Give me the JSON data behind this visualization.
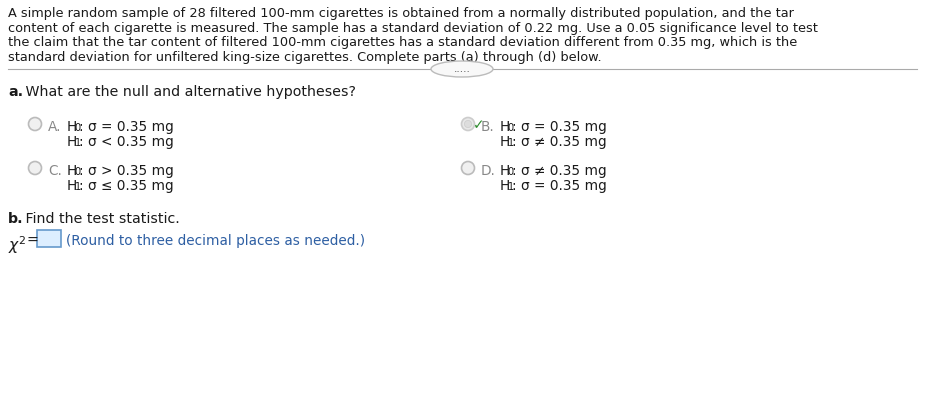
{
  "background_color": "#ffffff",
  "text_color": "#1a1a1a",
  "gray_color": "#888888",
  "blue_color": "#2e5fa3",
  "green_color": "#2e8b2e",
  "light_green_fill": "#e8f5e8",
  "light_gray_fill": "#f5f5f5",
  "intro_line1": "A simple random sample of 28 filtered 100-mm cigarettes is obtained from a normally distributed population, and the tar",
  "intro_line2": "content of each cigarette is measured. The sample has a standard deviation of 0.22 mg. Use a 0.05 significance level to test",
  "intro_line3": "the claim that the tar content of filtered 100-mm cigarettes has a standard deviation different from 0.35 mg, which is the",
  "intro_line4": "standard deviation for unfiltered king-size cigarettes. Complete parts (a) through (d) below.",
  "dots_text": ".....",
  "part_a_bold": "a.",
  "part_a_rest": " What are the null and alternative hypotheses?",
  "option_A_label": "A.",
  "option_A_line1_pre": "H",
  "option_A_line1_sub": "0",
  "option_A_line1_post": ": σ = 0.35 mg",
  "option_A_line2_pre": "H",
  "option_A_line2_sub": "1",
  "option_A_line2_post": ": σ < 0.35 mg",
  "option_B_label": "B.",
  "option_B_line1_post": ": σ = 0.35 mg",
  "option_B_line2_post": ": σ ≠ 0.35 mg",
  "option_C_label": "C.",
  "option_C_line1_post": ": σ > 0.35 mg",
  "option_C_line2_post": ": σ ≤ 0.35 mg",
  "option_D_label": "D.",
  "option_D_line1_post": ": σ ≠ 0.35 mg",
  "option_D_line2_post": ": σ = 0.35 mg",
  "part_b_bold": "b.",
  "part_b_rest": " Find the test statistic.",
  "input_hint": "(Round to three decimal places as needed.)"
}
